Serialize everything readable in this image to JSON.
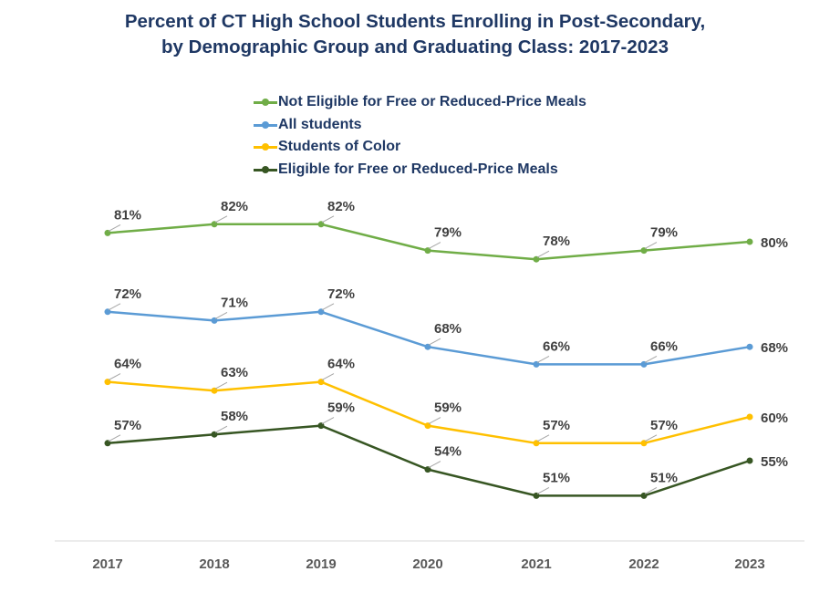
{
  "title": {
    "line1": "Percent of CT High School Students Enrolling in Post-Secondary,",
    "line2": "by Demographic Group and Graduating Class: 2017-2023"
  },
  "legend": [
    {
      "label": "Not Eligible for Free or Reduced-Price Meals",
      "color": "#70ad47"
    },
    {
      "label": "All students",
      "color": "#5b9bd5"
    },
    {
      "label": "Students of Color",
      "color": "#ffc000"
    },
    {
      "label": "Eligible for Free or Reduced-Price Meals",
      "color": "#375623"
    }
  ],
  "chart_data": {
    "type": "line",
    "title": "Percent of CT High School Students Enrolling in Post-Secondary, by Demographic Group and Graduating Class: 2017-2023",
    "categories": [
      "2017",
      "2018",
      "2019",
      "2020",
      "2021",
      "2022",
      "2023"
    ],
    "series": [
      {
        "name": "Not Eligible for Free or Reduced-Price Meals",
        "color": "#70ad47",
        "values": [
          81,
          82,
          82,
          79,
          78,
          79,
          80
        ],
        "labels": [
          "81%",
          "82%",
          "82%",
          "79%",
          "78%",
          "79%",
          "80%"
        ]
      },
      {
        "name": "All students",
        "color": "#5b9bd5",
        "values": [
          72,
          71,
          72,
          68,
          66,
          66,
          68
        ],
        "labels": [
          "72%",
          "71%",
          "72%",
          "68%",
          "66%",
          "66%",
          "68%"
        ]
      },
      {
        "name": "Students of Color",
        "color": "#ffc000",
        "values": [
          64,
          63,
          64,
          59,
          57,
          57,
          60
        ],
        "labels": [
          "64%",
          "63%",
          "64%",
          "59%",
          "57%",
          "57%",
          "60%"
        ]
      },
      {
        "name": "Eligible for Free or Reduced-Price Meals",
        "color": "#375623",
        "values": [
          57,
          58,
          59,
          54,
          51,
          51,
          55
        ],
        "labels": [
          "57%",
          "58%",
          "59%",
          "54%",
          "51%",
          "51%",
          "55%"
        ]
      }
    ],
    "ylim": [
      45,
      85
    ],
    "grid": false,
    "legend_position": "top"
  }
}
